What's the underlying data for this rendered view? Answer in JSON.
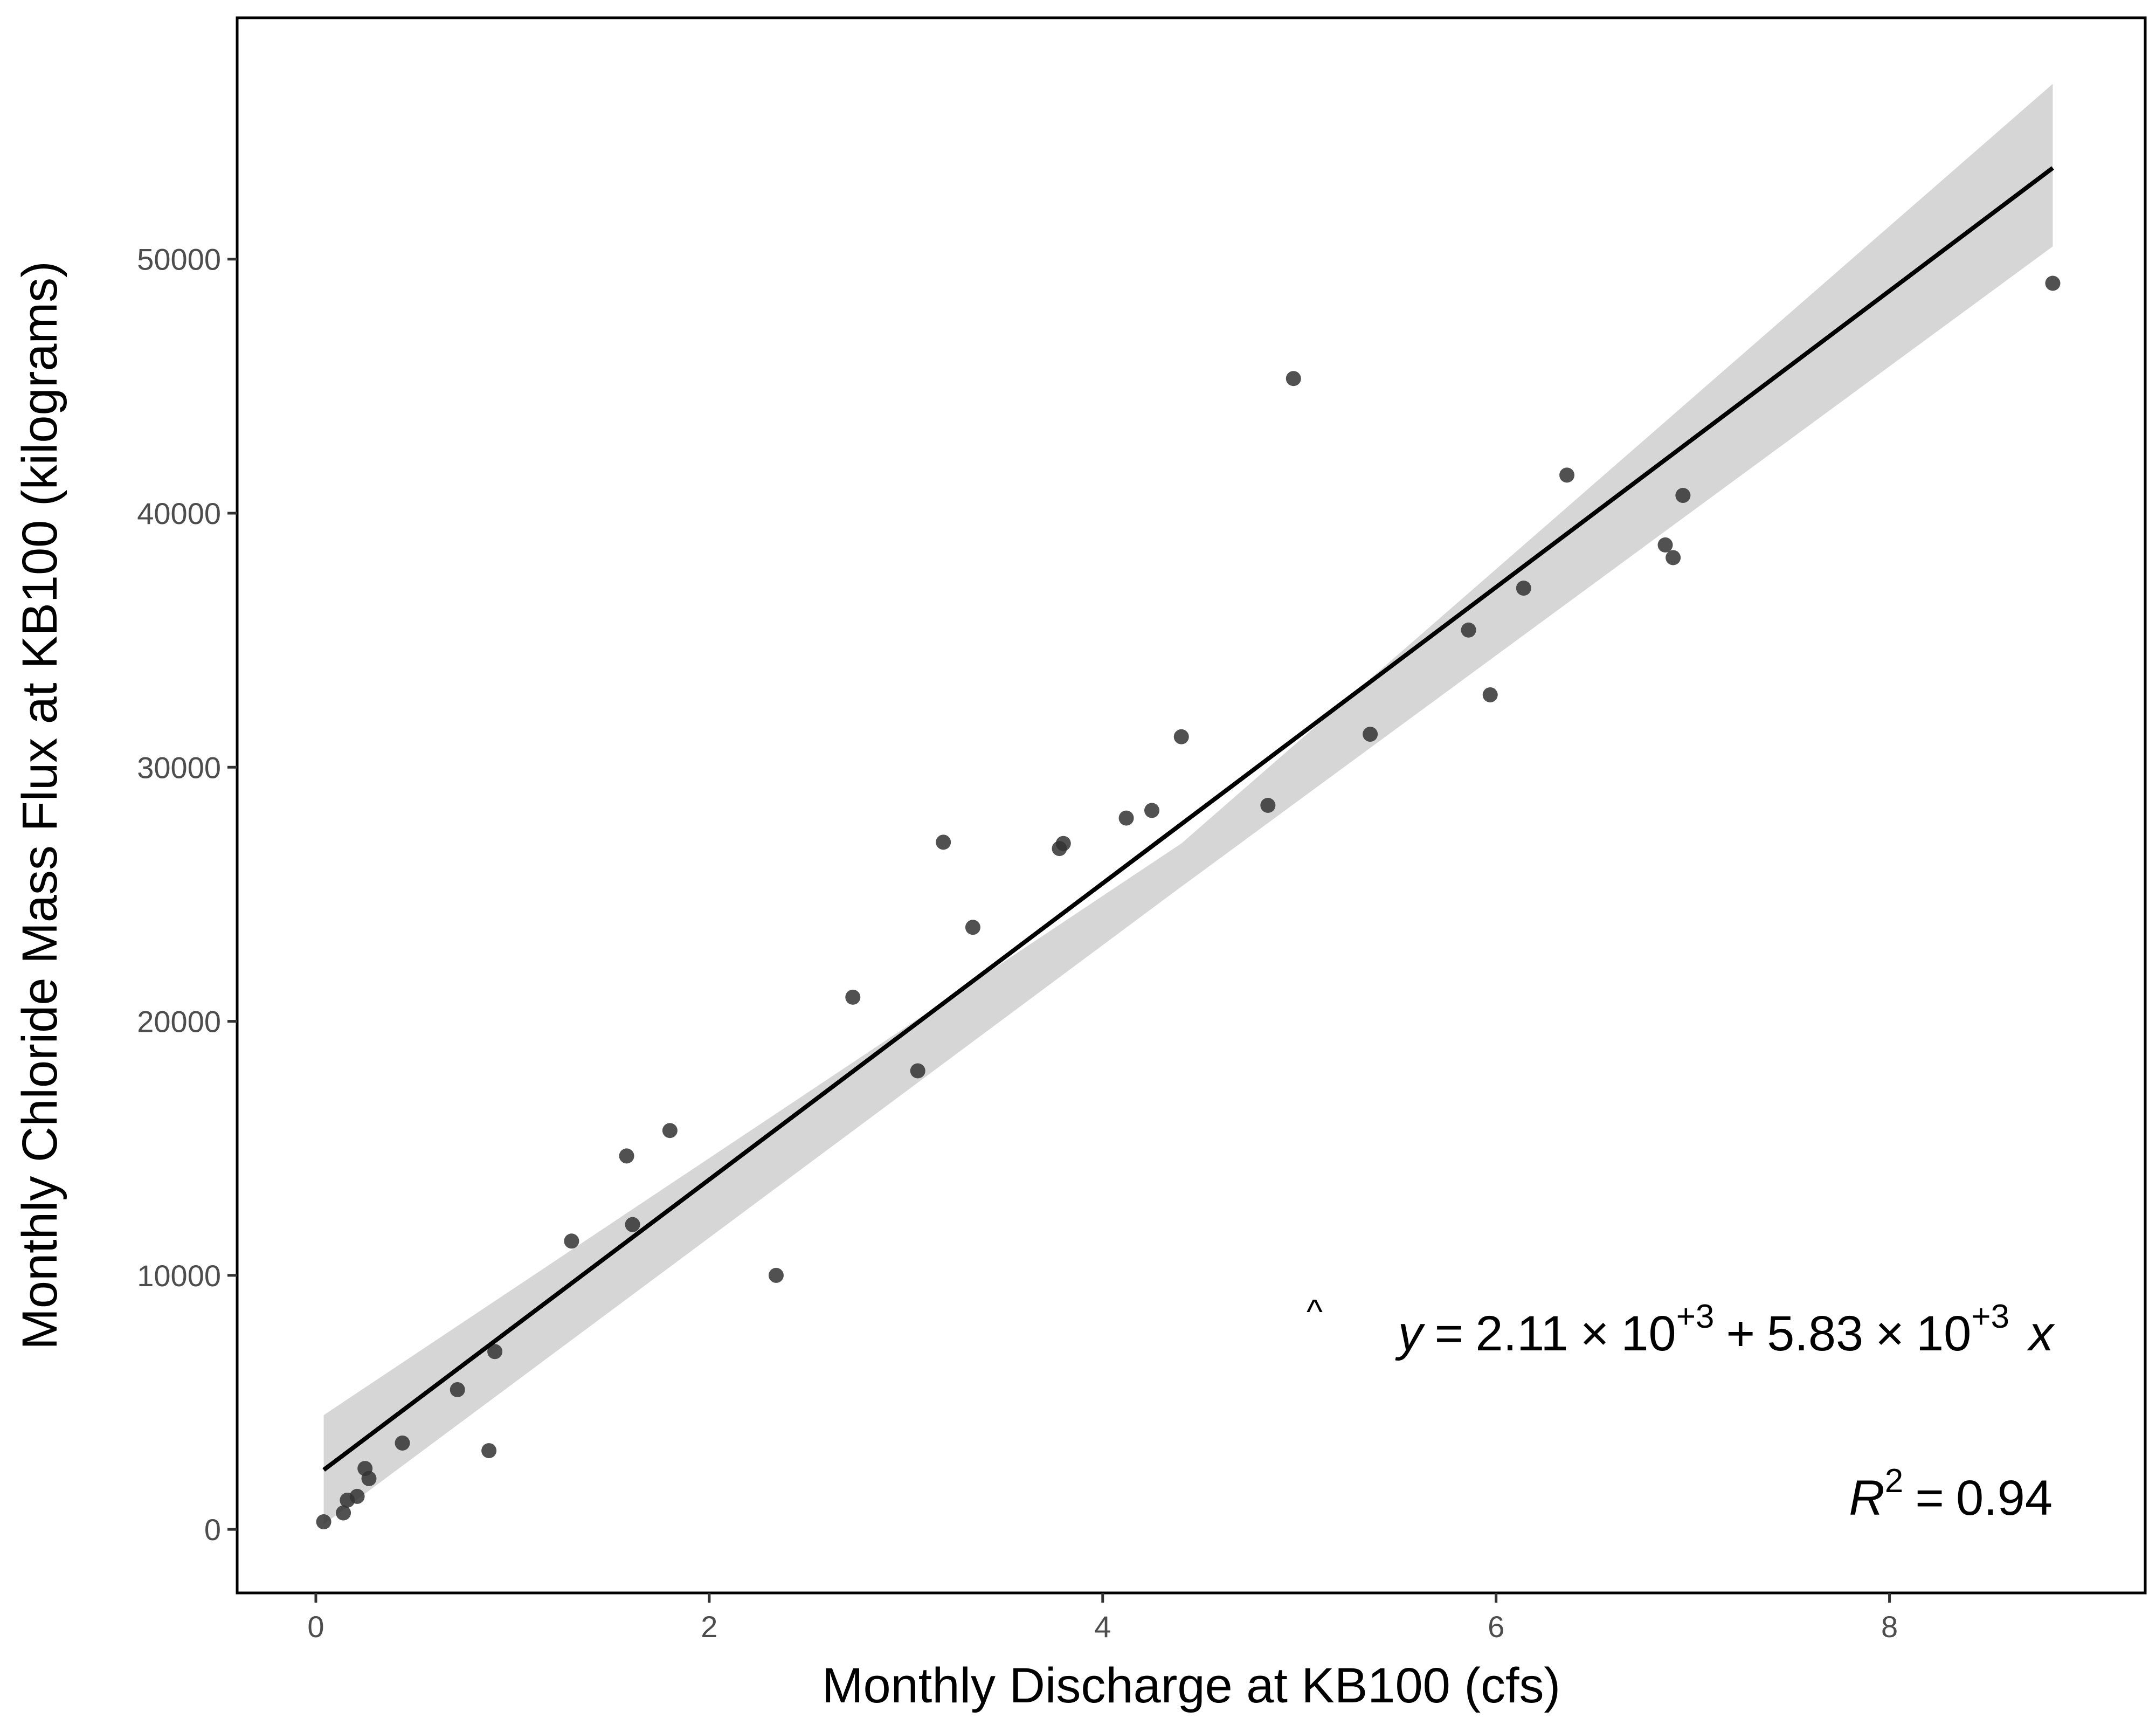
{
  "chart_data": {
    "type": "scatter",
    "title": "",
    "xlabel": "Monthly Discharge at KB100 (cfs)",
    "ylabel": "Monthly Chloride Mass Flux at KB100 (kilograms)",
    "xlim": [
      -0.4,
      9.3
    ],
    "ylim": [
      -2500,
      59500
    ],
    "x_ticks": [
      0,
      2,
      4,
      6,
      8
    ],
    "x_tick_labels": [
      "0",
      "2",
      "4",
      "6",
      "8"
    ],
    "y_ticks": [
      0,
      10000,
      20000,
      30000,
      40000,
      50000
    ],
    "y_tick_labels": [
      "0",
      "10000",
      "20000",
      "30000",
      "40000",
      "50000"
    ],
    "grid": false,
    "series": [
      {
        "points": [
          [
            0.04,
            300
          ],
          [
            0.14,
            650
          ],
          [
            0.16,
            1150
          ],
          [
            0.21,
            1300
          ],
          [
            0.25,
            2400
          ],
          [
            0.27,
            2000
          ],
          [
            0.44,
            3400
          ],
          [
            0.72,
            5500
          ],
          [
            0.88,
            3100
          ],
          [
            0.91,
            7000
          ],
          [
            1.3,
            11350
          ],
          [
            1.58,
            14700
          ],
          [
            1.61,
            12000
          ],
          [
            1.8,
            15700
          ],
          [
            2.34,
            10000
          ],
          [
            2.73,
            20950
          ],
          [
            3.06,
            18050
          ],
          [
            3.19,
            27050
          ],
          [
            3.34,
            23700
          ],
          [
            3.78,
            26800
          ],
          [
            3.8,
            27000
          ],
          [
            4.12,
            28000
          ],
          [
            4.25,
            28300
          ],
          [
            4.4,
            31200
          ],
          [
            4.84,
            28500
          ],
          [
            4.97,
            45300
          ],
          [
            5.36,
            31300
          ],
          [
            5.86,
            35400
          ],
          [
            5.97,
            32850
          ],
          [
            6.14,
            37050
          ],
          [
            6.36,
            41500
          ],
          [
            6.86,
            38750
          ],
          [
            6.9,
            38250
          ],
          [
            6.95,
            40700
          ],
          [
            8.83,
            49050
          ]
        ],
        "color": "#333333"
      }
    ],
    "fit_line": {
      "x_range": [
        0.04,
        8.83
      ],
      "intercept": 2110,
      "slope": 5830,
      "color": "#000000"
    },
    "confidence_band": {
      "x": [
        0.04,
        4.4,
        8.83
      ],
      "lower": [
        200,
        25300,
        50500
      ],
      "upper": [
        4500,
        27000,
        56900
      ],
      "color": "#d6d6d6"
    },
    "annotations": {
      "equation": {
        "yhat": "y",
        "hat": "^",
        "eq": "=",
        "intercept_mantissa": "2.11",
        "times": "×",
        "ten": "10",
        "intercept_exponent": "+3",
        "plus": "+",
        "slope_mantissa": "5.83",
        "slope_exponent": "+3",
        "x_var": "x"
      },
      "r_squared": {
        "r": "R",
        "exponent": "2",
        "eq": "=",
        "value": "0.94"
      }
    }
  }
}
